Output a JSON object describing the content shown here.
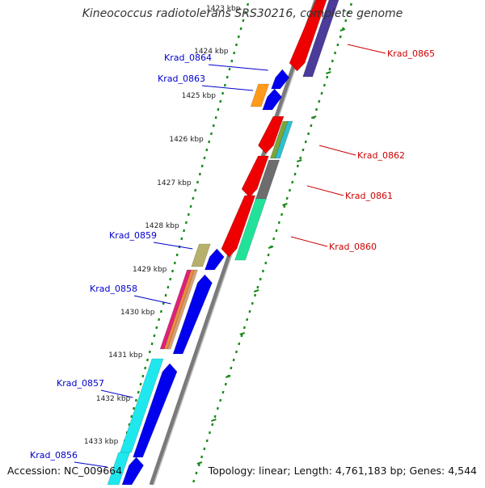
{
  "title": "Kineococcus radiotolerans SRS30216, complete genome",
  "accession_label": "Accession: NC_009664",
  "summary_label": "Topology: linear; Length: 4,761,183 bp; Genes: 4,544",
  "colors": {
    "backbone": "#7a7a7a",
    "tick": "#1a8a1a",
    "label_forward": "#0000cc",
    "label_reverse": "#cc0000",
    "gene_forward": "#0000ee",
    "gene_reverse": "#ee0000"
  },
  "ticks": [
    {
      "label": "1423 kbp"
    },
    {
      "label": "1424 kbp"
    },
    {
      "label": "1425 kbp"
    },
    {
      "label": "1426 kbp"
    },
    {
      "label": "1427 kbp"
    },
    {
      "label": "1428 kbp"
    },
    {
      "label": "1429 kbp"
    },
    {
      "label": "1430 kbp"
    },
    {
      "label": "1431 kbp"
    },
    {
      "label": "1432 kbp"
    },
    {
      "label": "1433 kbp"
    }
  ],
  "genes_forward": [
    {
      "label": "Krad_0864"
    },
    {
      "label": "Krad_0863"
    },
    {
      "label": "Krad_0859"
    },
    {
      "label": "Krad_0858"
    },
    {
      "label": "Krad_0857"
    },
    {
      "label": "Krad_0856"
    }
  ],
  "genes_reverse": [
    {
      "label": "Krad_0865"
    },
    {
      "label": "Krad_0862"
    },
    {
      "label": "Krad_0861"
    },
    {
      "label": "Krad_0860"
    }
  ]
}
